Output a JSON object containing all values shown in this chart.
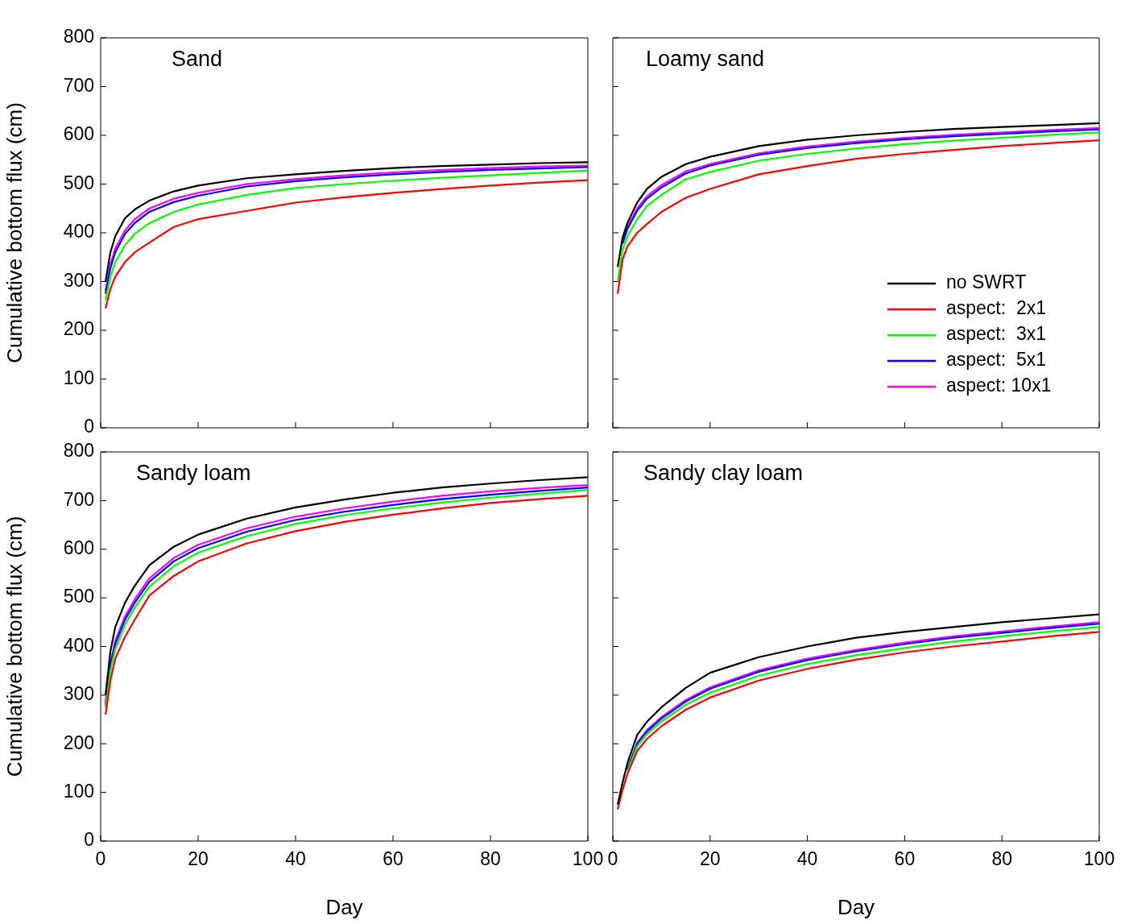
{
  "chart_data": [
    {
      "type": "line",
      "title": "Sand",
      "ylabel": "Cumulative bottom flux (cm)",
      "xlim": [
        0,
        100
      ],
      "xticks": [
        0,
        20,
        40,
        60,
        80,
        100
      ],
      "ylim": [
        0,
        800
      ],
      "yticks": [
        0,
        100,
        200,
        300,
        400,
        500,
        600,
        700,
        800
      ],
      "tick_labels": "y",
      "legend": false,
      "grid": false,
      "x": [
        1,
        2,
        3,
        5,
        7,
        10,
        15,
        20,
        30,
        40,
        50,
        60,
        70,
        80,
        90,
        100
      ],
      "series": [
        {
          "color": "#000000",
          "values": [
            300,
            360,
            393,
            430,
            448,
            466,
            485,
            497,
            512,
            520,
            527,
            533,
            537,
            540,
            543,
            545
          ]
        },
        {
          "color": "#ff0000",
          "values": [
            245,
            285,
            310,
            340,
            360,
            380,
            412,
            428,
            445,
            462,
            473,
            482,
            490,
            497,
            503,
            508
          ]
        },
        {
          "color": "#00ff00",
          "values": [
            262,
            310,
            340,
            375,
            398,
            420,
            443,
            458,
            478,
            492,
            500,
            507,
            513,
            518,
            523,
            528
          ]
        },
        {
          "color": "#0000ff",
          "values": [
            275,
            328,
            360,
            398,
            420,
            443,
            463,
            476,
            495,
            506,
            514,
            520,
            525,
            529,
            532,
            535
          ]
        },
        {
          "color": "#ff00ff",
          "values": [
            280,
            335,
            368,
            405,
            428,
            450,
            470,
            482,
            500,
            510,
            518,
            524,
            529,
            533,
            536,
            538
          ]
        }
      ]
    },
    {
      "type": "line",
      "title": "Loamy sand",
      "xlim": [
        0,
        100
      ],
      "xticks": [
        0,
        20,
        40,
        60,
        80,
        100
      ],
      "ylim": [
        0,
        800
      ],
      "yticks": [
        0,
        100,
        200,
        300,
        400,
        500,
        600,
        700,
        800
      ],
      "tick_labels": false,
      "legend": "right",
      "grid": false,
      "x": [
        1,
        2,
        3,
        5,
        7,
        10,
        15,
        20,
        30,
        40,
        50,
        60,
        70,
        80,
        90,
        100
      ],
      "series": [
        {
          "name": "no SWRT",
          "color": "#000000",
          "values": [
            330,
            390,
            420,
            462,
            490,
            515,
            541,
            556,
            578,
            591,
            600,
            607,
            613,
            617,
            621,
            625
          ]
        },
        {
          "name": "aspect:  2x1",
          "color": "#ff0000",
          "values": [
            275,
            345,
            372,
            400,
            418,
            443,
            472,
            490,
            520,
            537,
            552,
            562,
            570,
            578,
            584,
            590
          ]
        },
        {
          "name": "aspect:  3x1",
          "color": "#00ff00",
          "values": [
            300,
            365,
            393,
            428,
            455,
            478,
            510,
            525,
            548,
            562,
            573,
            582,
            589,
            595,
            601,
            606
          ]
        },
        {
          "name": "aspect:  5x1",
          "color": "#0000ff",
          "values": [
            null,
            378,
            408,
            445,
            470,
            493,
            522,
            538,
            560,
            574,
            584,
            592,
            598,
            603,
            608,
            612
          ]
        },
        {
          "name": "aspect: 10x1",
          "color": "#ff00ff",
          "values": [
            null,
            382,
            412,
            450,
            475,
            498,
            526,
            541,
            563,
            577,
            587,
            595,
            601,
            606,
            611,
            615
          ]
        }
      ]
    },
    {
      "type": "line",
      "title": "Sandy loam",
      "xlabel": "Day",
      "ylabel": "Cumulative bottom flux (cm)",
      "xlim": [
        0,
        100
      ],
      "xticks": [
        0,
        20,
        40,
        60,
        80,
        100
      ],
      "ylim": [
        0,
        800
      ],
      "yticks": [
        0,
        100,
        200,
        300,
        400,
        500,
        600,
        700,
        800
      ],
      "legend": false,
      "grid": false,
      "x": [
        1,
        2,
        3,
        5,
        7,
        10,
        15,
        20,
        30,
        40,
        50,
        60,
        70,
        80,
        90,
        100
      ],
      "series": [
        {
          "color": "#000000",
          "values": [
            300,
            390,
            440,
            490,
            525,
            567,
            605,
            630,
            663,
            686,
            702,
            716,
            727,
            735,
            742,
            748
          ]
        },
        {
          "color": "#ff0000",
          "values": [
            260,
            330,
            375,
            420,
            455,
            505,
            545,
            575,
            612,
            637,
            656,
            671,
            684,
            695,
            703,
            710
          ]
        },
        {
          "color": "#00ff00",
          "values": [
            275,
            350,
            395,
            445,
            480,
            523,
            565,
            593,
            627,
            652,
            670,
            684,
            696,
            706,
            714,
            722
          ]
        },
        {
          "color": "#0000ff",
          "values": [
            280,
            360,
            405,
            455,
            490,
            533,
            575,
            602,
            636,
            660,
            677,
            691,
            703,
            712,
            720,
            727
          ]
        },
        {
          "color": "#ff00ff",
          "values": [
            285,
            365,
            412,
            462,
            497,
            540,
            582,
            609,
            643,
            667,
            684,
            698,
            710,
            719,
            726,
            732
          ]
        }
      ]
    },
    {
      "type": "line",
      "title": "Sandy clay loam",
      "xlabel": "Day",
      "xlim": [
        0,
        100
      ],
      "xticks": [
        0,
        20,
        40,
        60,
        80,
        100
      ],
      "ylim": [
        0,
        800
      ],
      "yticks": [
        0,
        100,
        200,
        300,
        400,
        500,
        600,
        700,
        800
      ],
      "tick_labels": "x",
      "legend": false,
      "grid": false,
      "x": [
        1,
        2,
        3,
        5,
        7,
        10,
        15,
        20,
        30,
        40,
        50,
        60,
        70,
        80,
        90,
        100
      ],
      "series": [
        {
          "color": "#000000",
          "values": [
            75,
            120,
            160,
            218,
            245,
            275,
            315,
            346,
            378,
            400,
            418,
            430,
            440,
            450,
            458,
            466
          ]
        },
        {
          "color": "#ff0000",
          "values": [
            65,
            105,
            138,
            185,
            210,
            236,
            270,
            295,
            330,
            354,
            373,
            388,
            400,
            410,
            421,
            430
          ]
        },
        {
          "color": "#00ff00",
          "values": [
            null,
            null,
            143,
            195,
            220,
            246,
            280,
            305,
            340,
            364,
            382,
            397,
            410,
            421,
            431,
            440
          ]
        },
        {
          "color": "#0000ff",
          "values": [
            null,
            null,
            146,
            200,
            225,
            252,
            287,
            313,
            348,
            372,
            390,
            405,
            418,
            428,
            438,
            447
          ]
        },
        {
          "color": "#ff00ff",
          "values": [
            null,
            null,
            148,
            202,
            228,
            255,
            290,
            316,
            351,
            375,
            393,
            408,
            421,
            431,
            441,
            450
          ]
        }
      ]
    }
  ]
}
